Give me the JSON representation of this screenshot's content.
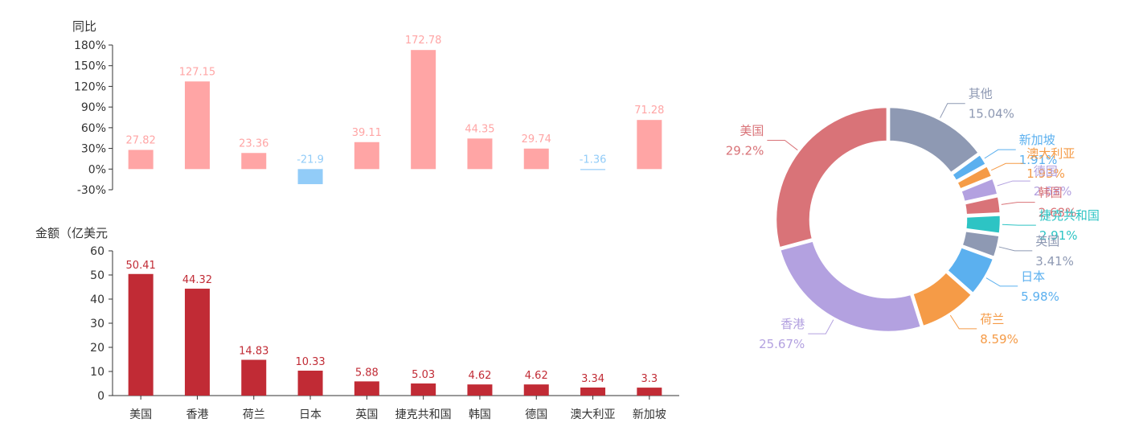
{
  "chart_data": [
    {
      "type": "bar",
      "ylabel": "同比",
      "categories": [
        "美国",
        "香港",
        "荷兰",
        "日本",
        "英国",
        "捷克共和国",
        "韩国",
        "德国",
        "澳大利亚",
        "新加坡"
      ],
      "values": [
        27.82,
        127.15,
        23.36,
        -21.9,
        39.11,
        172.78,
        44.35,
        29.74,
        -1.36,
        71.28
      ],
      "value_labels": [
        "27.82",
        "127.15",
        "23.36",
        "-21.9",
        "39.11",
        "172.78",
        "44.35",
        "29.74",
        "-1.36",
        "71.28"
      ],
      "ylim": [
        -30,
        180
      ],
      "yticks": [
        "-30%",
        "0%",
        "30%",
        "60%",
        "90%",
        "120%",
        "150%",
        "180%"
      ],
      "colors": {
        "positive": "#ffa5a5",
        "negative": "#92ccf8"
      }
    },
    {
      "type": "bar",
      "ylabel": "金额（亿美元",
      "categories": [
        "美国",
        "香港",
        "荷兰",
        "日本",
        "英国",
        "捷克共和国",
        "韩国",
        "德国",
        "澳大利亚",
        "新加坡"
      ],
      "values": [
        50.41,
        44.32,
        14.83,
        10.33,
        5.88,
        5.03,
        4.62,
        4.62,
        3.34,
        3.3
      ],
      "value_labels": [
        "50.41",
        "44.32",
        "14.83",
        "10.33",
        "5.88",
        "5.03",
        "4.62",
        "4.62",
        "3.34",
        "3.3"
      ],
      "ylim": [
        0,
        60
      ],
      "yticks": [
        "0",
        "10",
        "20",
        "30",
        "40",
        "50",
        "60"
      ],
      "colors": {
        "bar": "#c12b35"
      }
    },
    {
      "type": "pie",
      "donut": true,
      "slices": [
        {
          "name": "其他",
          "percent": "15.04%",
          "value": 15.04,
          "color": "#8e99b3"
        },
        {
          "name": "新加坡",
          "percent": "1.91%",
          "value": 1.91,
          "color": "#5bb0ef"
        },
        {
          "name": "澳大利亚",
          "percent": "1.93%",
          "value": 1.93,
          "color": "#f59b47"
        },
        {
          "name": "德国",
          "percent": "2.68%",
          "value": 2.68,
          "color": "#b3a1e0"
        },
        {
          "name": "韩国",
          "percent": "2.68%",
          "value": 2.68,
          "color": "#d97378"
        },
        {
          "name": "捷克共和国",
          "percent": "2.91%",
          "value": 2.91,
          "color": "#2dc4c4"
        },
        {
          "name": "英国",
          "percent": "3.41%",
          "value": 3.41,
          "color": "#8e99b3"
        },
        {
          "name": "日本",
          "percent": "5.98%",
          "value": 5.98,
          "color": "#5bb0ef"
        },
        {
          "name": "荷兰",
          "percent": "8.59%",
          "value": 8.59,
          "color": "#f59b47"
        },
        {
          "name": "香港",
          "percent": "25.67%",
          "value": 25.67,
          "color": "#b3a1e0"
        },
        {
          "name": "美国",
          "percent": "29.2%",
          "value": 29.2,
          "color": "#d97378"
        }
      ]
    }
  ]
}
